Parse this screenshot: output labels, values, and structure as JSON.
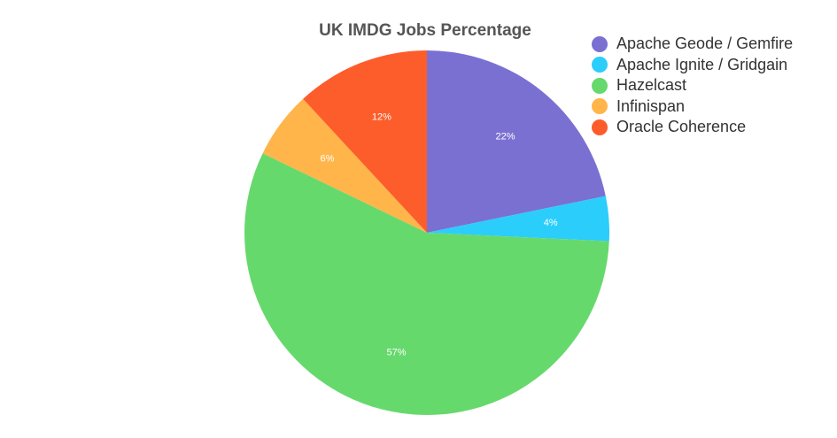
{
  "chart_data": {
    "type": "pie",
    "title": "UK IMDG Jobs Percentage",
    "legend_position": "top-right",
    "slices": [
      {
        "name": "Apache Geode / Gemfire",
        "value": 22,
        "label": "22%",
        "color": "#7a70d2"
      },
      {
        "name": "Apache Ignite / Gridgain",
        "value": 4,
        "label": "4%",
        "color": "#2bcdfb"
      },
      {
        "name": "Hazelcast",
        "value": 57,
        "label": "57%",
        "color": "#66d96c"
      },
      {
        "name": "Infinispan",
        "value": 6,
        "label": "6%",
        "color": "#ffb54a"
      },
      {
        "name": "Oracle Coherence",
        "value": 12,
        "label": "12%",
        "color": "#fd5d2b"
      }
    ]
  }
}
